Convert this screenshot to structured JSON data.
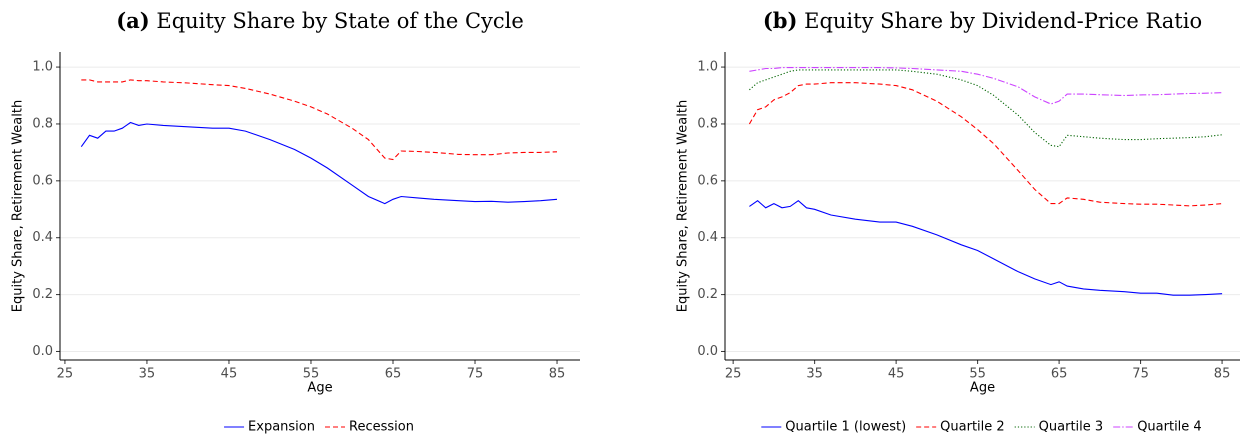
{
  "chart_data": [
    {
      "type": "line",
      "label": "(a)",
      "title": "Equity Share by State of the Cycle",
      "x_label": "Age",
      "y_label": "Equity Share, Retirement Wealth",
      "x": [
        27,
        28,
        29,
        30,
        31,
        32,
        33,
        34,
        35,
        37,
        40,
        43,
        45,
        47,
        50,
        53,
        55,
        57,
        60,
        62,
        64,
        65,
        66,
        68,
        70,
        73,
        75,
        77,
        79,
        81,
        83,
        85
      ],
      "series": [
        {
          "name": "Expansion",
          "color": "#0000ff",
          "linestyle": "solid",
          "values": [
            0.72,
            0.76,
            0.75,
            0.775,
            0.775,
            0.785,
            0.805,
            0.795,
            0.8,
            0.795,
            0.79,
            0.785,
            0.785,
            0.775,
            0.745,
            0.71,
            0.68,
            0.645,
            0.585,
            0.545,
            0.52,
            0.535,
            0.545,
            0.54,
            0.535,
            0.53,
            0.527,
            0.528,
            0.525,
            0.527,
            0.53,
            0.535
          ]
        },
        {
          "name": "Recession",
          "color": "#ff0000",
          "linestyle": "dashed",
          "values": [
            0.955,
            0.955,
            0.948,
            0.948,
            0.948,
            0.948,
            0.955,
            0.952,
            0.952,
            0.948,
            0.944,
            0.938,
            0.935,
            0.925,
            0.905,
            0.88,
            0.86,
            0.835,
            0.785,
            0.745,
            0.68,
            0.675,
            0.705,
            0.703,
            0.7,
            0.693,
            0.692,
            0.692,
            0.698,
            0.7,
            0.7,
            0.702
          ]
        }
      ],
      "xlim": [
        24.4,
        87.8
      ],
      "xticks": [
        25,
        35,
        45,
        55,
        65,
        75,
        85
      ],
      "ylim": [
        -0.03,
        1.053
      ],
      "yticks": [
        {
          "value": 0,
          "label": "0.0"
        },
        0.2,
        0.4,
        0.6,
        0.8,
        {
          "value": 1,
          "label": "1.0"
        }
      ],
      "grid": true,
      "legend": "bottom"
    },
    {
      "type": "line",
      "label": "(b)",
      "title": "Equity Share by Dividend-Price Ratio",
      "x_label": "Age",
      "y_label": "Equity Share, Retirement Wealth",
      "x": [
        27,
        28,
        29,
        30,
        31,
        32,
        33,
        34,
        35,
        37,
        40,
        43,
        45,
        47,
        50,
        53,
        55,
        57,
        60,
        62,
        64,
        65,
        66,
        68,
        70,
        73,
        75,
        77,
        79,
        81,
        83,
        85
      ],
      "series": [
        {
          "name": "Quartile 1 (lowest)",
          "color": "#0000ff",
          "linestyle": "solid",
          "values": [
            0.51,
            0.53,
            0.505,
            0.52,
            0.505,
            0.51,
            0.53,
            0.505,
            0.5,
            0.48,
            0.465,
            0.455,
            0.455,
            0.44,
            0.41,
            0.375,
            0.355,
            0.325,
            0.28,
            0.255,
            0.235,
            0.245,
            0.23,
            0.22,
            0.215,
            0.21,
            0.205,
            0.205,
            0.198,
            0.198,
            0.2,
            0.203
          ]
        },
        {
          "name": "Quartile 2",
          "color": "#ff0000",
          "linestyle": "dashed",
          "values": [
            0.8,
            0.85,
            0.86,
            0.885,
            0.895,
            0.91,
            0.935,
            0.94,
            0.94,
            0.945,
            0.945,
            0.94,
            0.935,
            0.92,
            0.88,
            0.825,
            0.78,
            0.73,
            0.635,
            0.57,
            0.52,
            0.52,
            0.54,
            0.535,
            0.525,
            0.52,
            0.518,
            0.518,
            0.515,
            0.512,
            0.515,
            0.52
          ]
        },
        {
          "name": "Quartile 3",
          "color": "#006400",
          "linestyle": "dotted",
          "values": [
            0.92,
            0.945,
            0.955,
            0.965,
            0.975,
            0.985,
            0.99,
            0.99,
            0.99,
            0.99,
            0.99,
            0.99,
            0.99,
            0.985,
            0.975,
            0.955,
            0.935,
            0.9,
            0.83,
            0.77,
            0.725,
            0.72,
            0.76,
            0.755,
            0.75,
            0.745,
            0.745,
            0.748,
            0.75,
            0.752,
            0.755,
            0.762
          ]
        },
        {
          "name": "Quartile 4",
          "color": "#cc44ff",
          "linestyle": "dashdot",
          "values": [
            0.985,
            0.99,
            0.995,
            0.995,
            0.998,
            0.998,
            0.998,
            0.998,
            0.998,
            0.998,
            0.998,
            0.998,
            0.997,
            0.995,
            0.99,
            0.985,
            0.975,
            0.96,
            0.93,
            0.895,
            0.87,
            0.88,
            0.905,
            0.905,
            0.903,
            0.9,
            0.902,
            0.903,
            0.905,
            0.907,
            0.908,
            0.91
          ]
        }
      ],
      "xlim": [
        24.0,
        87.2
      ],
      "xticks": [
        25,
        35,
        45,
        55,
        65,
        75,
        85
      ],
      "ylim": [
        -0.03,
        1.053
      ],
      "yticks": [
        {
          "value": 0,
          "label": "0.0"
        },
        0.2,
        0.4,
        0.6,
        0.8,
        {
          "value": 1,
          "label": "1.0"
        }
      ],
      "grid": true,
      "legend": "bottom"
    }
  ]
}
